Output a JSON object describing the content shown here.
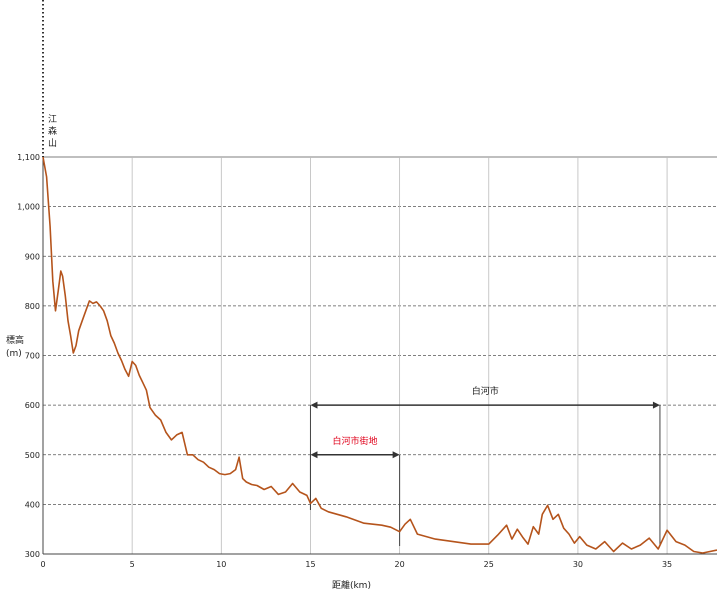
{
  "chart_data": {
    "type": "line",
    "title": "",
    "xlabel": "距離(km)",
    "ylabel": "標高(m)",
    "xlim": [
      0,
      37.8
    ],
    "ylim": [
      300,
      1100
    ],
    "xticks": [
      0,
      5,
      10,
      15,
      20,
      25,
      30,
      35
    ],
    "yticks": [
      300,
      400,
      500,
      600,
      700,
      800,
      900,
      1000,
      1100
    ],
    "ytick_labels": [
      "300",
      "400",
      "500",
      "600",
      "700",
      "800",
      "900",
      "1,000",
      "1,100"
    ],
    "grid": {
      "vertical": "solid",
      "horizontal": "dashed"
    },
    "line_color": "#b5541c",
    "peak_label": "江 森 山",
    "series": [
      {
        "x": [
          0,
          0.2,
          0.4,
          0.55,
          0.7,
          0.85,
          1.0,
          1.1,
          1.25,
          1.4,
          1.55,
          1.7,
          1.85,
          2.0,
          2.2,
          2.4,
          2.6,
          2.8,
          3.0,
          3.2,
          3.4,
          3.6,
          3.8,
          4.0,
          4.2,
          4.4,
          4.6,
          4.8,
          5.0,
          5.2,
          5.4,
          5.6,
          5.8,
          6.0,
          6.3,
          6.6,
          6.9,
          7.2,
          7.5,
          7.8,
          8.1,
          8.4,
          8.7,
          9.0,
          9.3,
          9.6,
          9.9,
          10.2,
          10.5,
          10.8,
          11.0,
          11.2,
          11.4,
          11.7,
          12.0,
          12.4,
          12.8,
          13.2,
          13.6,
          14.0,
          14.4,
          14.8,
          15.0,
          15.3,
          15.6,
          16.0,
          17.0,
          18.0,
          19.0,
          19.5,
          20.0,
          20.3,
          20.6,
          21.0,
          22.0,
          23.0,
          24.0,
          25.0,
          25.5,
          26.0,
          26.3,
          26.6,
          26.9,
          27.2,
          27.5,
          27.8,
          28.0,
          28.3,
          28.6,
          28.9,
          29.2,
          29.5,
          29.8,
          30.1,
          30.5,
          31.0,
          31.5,
          32.0,
          32.5,
          33.0,
          33.5,
          34.0,
          34.5,
          35.0,
          35.5,
          36.0,
          36.5,
          37.0,
          37.8
        ],
        "y": [
          1100,
          1060,
          960,
          850,
          790,
          830,
          870,
          860,
          820,
          770,
          740,
          705,
          720,
          750,
          770,
          790,
          810,
          805,
          808,
          800,
          790,
          770,
          740,
          725,
          705,
          690,
          672,
          658,
          688,
          680,
          660,
          645,
          630,
          595,
          580,
          570,
          545,
          530,
          540,
          545,
          500,
          500,
          490,
          485,
          475,
          470,
          462,
          460,
          462,
          470,
          495,
          452,
          445,
          440,
          438,
          430,
          436,
          420,
          425,
          442,
          425,
          418,
          402,
          412,
          392,
          385,
          375,
          362,
          358,
          354,
          345,
          360,
          370,
          340,
          330,
          325,
          320,
          320,
          338,
          358,
          330,
          350,
          334,
          320,
          355,
          340,
          380,
          398,
          370,
          380,
          352,
          340,
          322,
          335,
          318,
          310,
          325,
          305,
          322,
          310,
          318,
          332,
          310,
          348,
          325,
          318,
          305,
          302,
          308
        ]
      }
    ],
    "annotations": [
      {
        "label": "白河市",
        "from": 15,
        "to": 34.6,
        "y": 600,
        "color": "#222222"
      },
      {
        "label": "白河市街地",
        "from": 15,
        "to": 20,
        "y": 500,
        "color": "#e0001a"
      }
    ]
  }
}
